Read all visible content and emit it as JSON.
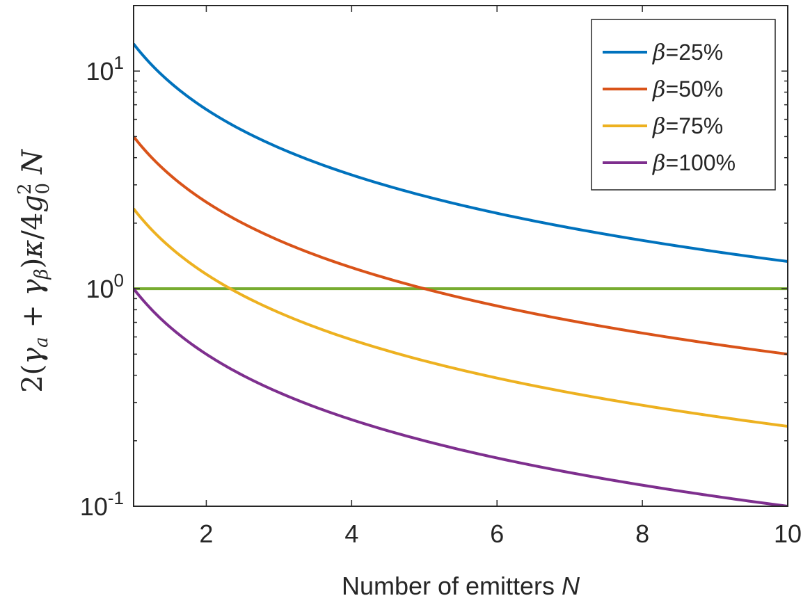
{
  "chart_data": {
    "type": "line",
    "title": "",
    "xlabel": "Number of emitters ",
    "xlabel_var": "N",
    "ylabel": "2(γ_a + γ_β)κ/4g_0^2 N",
    "xlim": [
      1,
      10
    ],
    "ylim": [
      0.1,
      20
    ],
    "yscale": "log",
    "grid": false,
    "legend_position": "top-right",
    "x_ticks": [
      2,
      4,
      6,
      8,
      10
    ],
    "y_ticks": [
      {
        "value": 0.1,
        "base": "10",
        "exp": "-1"
      },
      {
        "value": 1,
        "base": "10",
        "exp": "0"
      },
      {
        "value": 10,
        "base": "10",
        "exp": "1"
      }
    ],
    "series": [
      {
        "name": "β=25%",
        "legend_symbol": "β",
        "legend_suffix": "=25%",
        "color": "#0072BD",
        "coefficient": 13.33,
        "formula": "coefficient / N"
      },
      {
        "name": "β=50%",
        "legend_symbol": "β",
        "legend_suffix": "=50%",
        "color": "#D95319",
        "coefficient": 5.0,
        "formula": "coefficient / N"
      },
      {
        "name": "β=75%",
        "legend_symbol": "β",
        "legend_suffix": "=75%",
        "color": "#EDB120",
        "coefficient": 2.33,
        "formula": "coefficient / N"
      },
      {
        "name": "β=100%",
        "legend_symbol": "β",
        "legend_suffix": "=100%",
        "color": "#7E2F8E",
        "coefficient": 1.0,
        "formula": "coefficient / N"
      }
    ],
    "reference_line": {
      "y": 1,
      "color": "#77AC30"
    }
  }
}
